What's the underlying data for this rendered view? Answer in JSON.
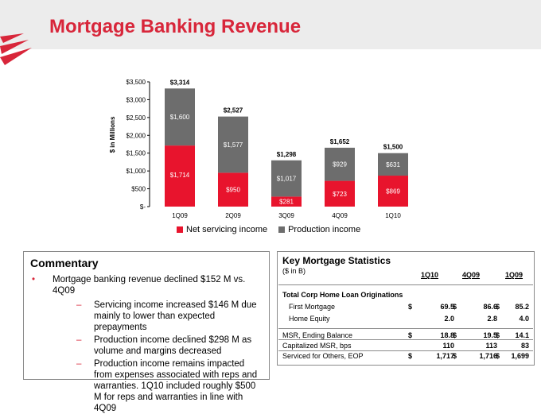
{
  "title": "Mortgage Banking Revenue",
  "colors": {
    "accent": "#d8263a",
    "net_servicing": "#e8142d",
    "production": "#6d6d6d"
  },
  "chart_data": {
    "type": "bar",
    "stacked": true,
    "categories": [
      "1Q09",
      "2Q09",
      "3Q09",
      "4Q09",
      "1Q10"
    ],
    "series": [
      {
        "name": "Net servicing income",
        "values": [
          1714,
          950,
          281,
          723,
          869
        ],
        "labels": [
          "$1,714",
          "$950",
          "$281",
          "$723",
          "$869"
        ]
      },
      {
        "name": "Production income",
        "values": [
          1600,
          1577,
          1017,
          929,
          631
        ],
        "labels": [
          "$1,600",
          "$1,577",
          "$1,017",
          "$929",
          "$631"
        ]
      }
    ],
    "totals": [
      3314,
      2527,
      1298,
      1652,
      1500
    ],
    "total_labels": [
      "$3,314",
      "$2,527",
      "$1,298",
      "$1,652",
      "$1,500"
    ],
    "ylabel": "$ in Millions",
    "ylim": [
      0,
      3500
    ],
    "yticks": [
      0,
      500,
      1000,
      1500,
      2000,
      2500,
      3000,
      3500
    ],
    "ytick_labels": [
      "$-",
      "$500",
      "$1,000",
      "$1,500",
      "$2,000",
      "$2,500",
      "$3,000",
      "$3,500"
    ],
    "grid": false,
    "legend_position": "bottom"
  },
  "commentary": {
    "heading": "Commentary",
    "bullet": "Mortgage banking revenue declined $152 M vs. 4Q09",
    "bullet_marker": "•",
    "dash_marker": "–",
    "sub_bullets": [
      "Servicing income increased $146 M due mainly to lower than expected prepayments",
      "Production income declined $298 M as volume and margins decreased",
      "Production income remains impacted from expenses associated with reps and warranties. 1Q10 included roughly $500 M for reps and warranties in line with 4Q09"
    ]
  },
  "stats": {
    "title": "Key Mortgage Statistics",
    "unit": "($ in B)",
    "columns": [
      "1Q10",
      "4Q09",
      "1Q09"
    ],
    "currency": "$",
    "section_label": "Total Corp Home Loan Originations",
    "rows": [
      {
        "label": "First Mortgage",
        "values": [
          "69.5",
          "86.6",
          "85.2"
        ]
      },
      {
        "label": "Home Equity",
        "values": [
          "2.0",
          "2.8",
          "4.0"
        ]
      },
      {
        "label": "MSR, Ending Balance",
        "values": [
          "18.8",
          "19.5",
          "14.1"
        ]
      },
      {
        "label": "Capitalized MSR, bps",
        "values": [
          "110",
          "113",
          "83"
        ]
      },
      {
        "label": "Serviced for Others, EOP",
        "values": [
          "1,717",
          "1,716",
          "1,699"
        ]
      }
    ]
  }
}
